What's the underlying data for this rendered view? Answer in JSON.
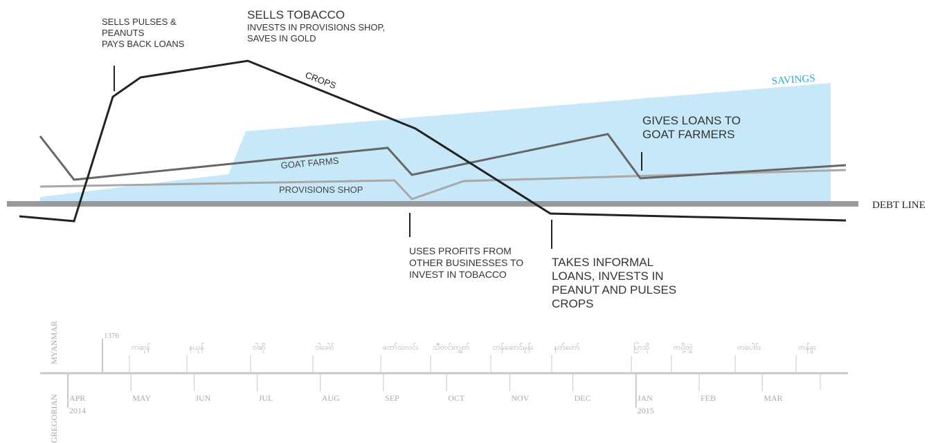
{
  "chart_data": {
    "type": "line",
    "x": [
      "APR 2014",
      "MAY",
      "JUN",
      "JUL",
      "AUG",
      "SEP",
      "OCT",
      "NOV",
      "DEC",
      "JAN 2015",
      "FEB",
      "MAR"
    ],
    "series": [
      {
        "name": "CROPS",
        "color": "#222222"
      },
      {
        "name": "GOAT FARMS",
        "color": "#666666"
      },
      {
        "name": "PROVISIONS SHOP",
        "color": "#a8a8a8"
      },
      {
        "name": "SAVINGS",
        "color": "#29a9d9"
      }
    ],
    "reference_line": {
      "label": "DEBT LINE",
      "color": "#999999"
    },
    "gregorian_axis": {
      "label": "GREGORIAN",
      "months": [
        {
          "m": "APR",
          "y": "2014"
        },
        {
          "m": "MAY",
          "y": ""
        },
        {
          "m": "JUN",
          "y": ""
        },
        {
          "m": "JUL",
          "y": ""
        },
        {
          "m": "AUG",
          "y": ""
        },
        {
          "m": "SEP",
          "y": ""
        },
        {
          "m": "OCT",
          "y": ""
        },
        {
          "m": "NOV",
          "y": ""
        },
        {
          "m": "DEC",
          "y": ""
        },
        {
          "m": "JAN",
          "y": "2015"
        },
        {
          "m": "FEB",
          "y": ""
        },
        {
          "m": "MAR",
          "y": ""
        }
      ]
    },
    "myanmar_axis": {
      "label": "MYANMAR",
      "year": "1376",
      "months": [
        "ကဆုန်",
        "နယုန်",
        "ဝါဆို",
        "ဝါခေါင်",
        "တော်သလင်း",
        "သီတင်းကျွတ်",
        "တန်ဆောင်မုန်း",
        "နတ်တော်",
        "ပြာသို",
        "တပို့တွဲ",
        "တပေါင်း",
        "တန်ခူး"
      ]
    },
    "annotations": {
      "pulses": [
        "SELLS PULSES &",
        "PEANUTS",
        "PAYS BACK LOANS"
      ],
      "tobacco_title": "SELLS TOBACCO",
      "tobacco_sub": [
        "INVESTS IN PROVISIONS SHOP,",
        "SAVES IN GOLD"
      ],
      "goat_loans": [
        "GIVES LOANS TO",
        "GOAT FARMERS"
      ],
      "profits": [
        "USES PROFITS FROM",
        "OTHER BUSINESSES TO",
        "INVEST IN TOBACCO"
      ],
      "informal": [
        "TAKES INFORMAL",
        "LOANS, INVESTS IN",
        "PEANUT AND PULSES",
        "CROPS"
      ]
    }
  }
}
